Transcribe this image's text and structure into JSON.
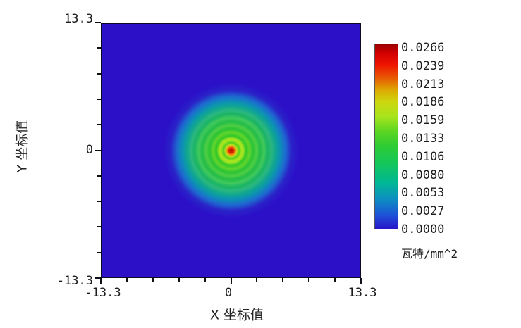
{
  "plot": {
    "x_axis": {
      "label": "X 坐标值",
      "tick_labels": [
        "-13.3",
        "0",
        "13.3"
      ],
      "tick_count": 11
    },
    "y_axis": {
      "label": "Y 坐标值",
      "tick_labels": [
        "13.3",
        "0",
        "-13.3"
      ],
      "tick_count": 11
    },
    "background_color": "#2b10c8"
  },
  "colorbar": {
    "labels": [
      "0.0266",
      "0.0239",
      "0.0213",
      "0.0186",
      "0.0159",
      "0.0133",
      "0.0106",
      "0.0080",
      "0.0053",
      "0.0027",
      "0.0000"
    ],
    "unit": "瓦特/mm^2",
    "min": 0.0,
    "max": 0.0266,
    "top_color": "#c00000",
    "bottom_color": "#2815ca"
  },
  "chart_data": {
    "type": "heatmap",
    "title": "",
    "xlabel": "X 坐标值",
    "ylabel": "Y 坐标值",
    "xlim": [
      -13.3,
      13.3
    ],
    "ylim": [
      -13.3,
      13.3
    ],
    "x_ticks": [
      -13.3,
      0,
      13.3
    ],
    "y_ticks": [
      -13.3,
      0,
      13.3
    ],
    "grid": false,
    "legend_position": "right-colorbar",
    "colorbar": {
      "unit": "瓦特/mm^2",
      "min": 0.0,
      "max": 0.0266,
      "tick_values": [
        0.0266,
        0.0239,
        0.0213,
        0.0186,
        0.0159,
        0.0133,
        0.0106,
        0.008,
        0.0053,
        0.0027,
        0.0
      ],
      "colormap": "rainbow: blue -> cyan -> green -> yellow -> orange -> red"
    },
    "description": "Circularly symmetric Airy-like diffraction irradiance pattern centered at (0,0) on a deep blue zero-irradiance background; tiny red peak at the center surrounded by concentric green diffraction rings fading through cyan to blue.",
    "peak": {
      "x": 0,
      "y": 0,
      "value": 0.0266
    },
    "radial_profile": [
      {
        "r": 0.0,
        "irradiance": 0.0266
      },
      {
        "r": 0.3,
        "irradiance": 0.022
      },
      {
        "r": 0.5,
        "irradiance": 0.017
      },
      {
        "r": 0.8,
        "irradiance": 0.012
      },
      {
        "r": 1.1,
        "irradiance": 0.0155
      },
      {
        "r": 1.5,
        "irradiance": 0.011
      },
      {
        "r": 1.9,
        "irradiance": 0.0125
      },
      {
        "r": 2.3,
        "irradiance": 0.0105
      },
      {
        "r": 2.7,
        "irradiance": 0.0115
      },
      {
        "r": 3.2,
        "irradiance": 0.0095
      },
      {
        "r": 3.8,
        "irradiance": 0.009
      },
      {
        "r": 4.3,
        "irradiance": 0.007
      },
      {
        "r": 4.9,
        "irradiance": 0.005
      },
      {
        "r": 5.5,
        "irradiance": 0.003
      },
      {
        "r": 6.2,
        "irradiance": 0.0013
      },
      {
        "r": 7.0,
        "irradiance": 0.0003
      },
      {
        "r": 13.3,
        "irradiance": 0.0
      }
    ]
  }
}
